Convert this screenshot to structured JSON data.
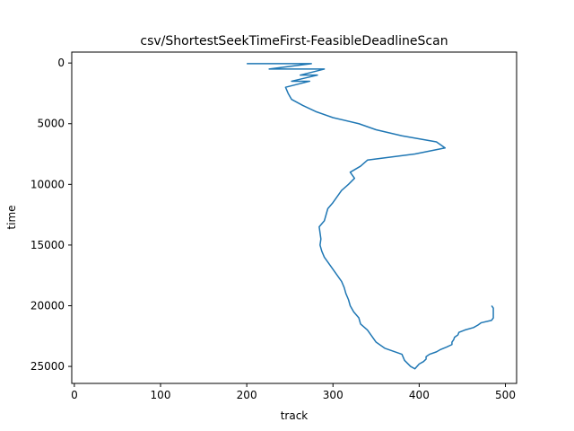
{
  "chart_data": {
    "type": "line",
    "title": "csv/ShortestSeekTimeFirst-FeasibleDeadlineScan",
    "xlabel": "track",
    "ylabel": "time",
    "xlim": [
      -3,
      513
    ],
    "ylim": [
      26400,
      -900
    ],
    "y_inverted": true,
    "grid": false,
    "legend": "none",
    "line_color": "#1f77b4",
    "xticks": [
      0,
      100,
      200,
      300,
      400,
      500
    ],
    "yticks": [
      0,
      5000,
      10000,
      15000,
      20000,
      25000
    ],
    "series": [
      {
        "x": [
          200,
          275,
          226,
          290,
          262,
          282,
          252,
          273,
          245,
          248,
          252,
          265,
          280,
          300,
          330,
          350,
          380,
          420,
          430,
          395,
          340,
          332,
          320,
          325,
          318,
          310,
          305,
          300,
          294,
          292,
          290,
          284,
          285,
          286,
          285,
          287,
          290,
          295,
          300,
          305,
          310,
          313,
          315,
          318,
          320,
          324,
          330,
          332,
          340,
          345,
          350,
          360,
          380,
          383,
          390,
          395,
          400,
          405,
          408,
          408,
          412,
          420,
          425,
          432,
          438,
          438,
          440,
          441,
          445,
          446,
          453,
          463,
          468,
          472,
          484,
          486,
          486,
          486,
          486,
          486,
          484
        ],
        "y": [
          50,
          50,
          500,
          500,
          1000,
          1000,
          1500,
          1500,
          2000,
          2500,
          3000,
          3500,
          4000,
          4500,
          5000,
          5500,
          6000,
          6500,
          7000,
          7500,
          8000,
          8500,
          9000,
          9500,
          10000,
          10500,
          11000,
          11500,
          12000,
          12500,
          13000,
          13500,
          14000,
          14500,
          15000,
          15500,
          16000,
          16500,
          17000,
          17500,
          18000,
          18500,
          19000,
          19500,
          20000,
          20500,
          21000,
          21500,
          22000,
          22500,
          23000,
          23500,
          24000,
          24500,
          25000,
          25200,
          24800,
          24600,
          24400,
          24200,
          24000,
          23800,
          23600,
          23400,
          23200,
          23000,
          22800,
          22600,
          22400,
          22200,
          22000,
          21800,
          21600,
          21400,
          21200,
          21000,
          20800,
          20600,
          20400,
          20200,
          20000
        ]
      }
    ]
  }
}
